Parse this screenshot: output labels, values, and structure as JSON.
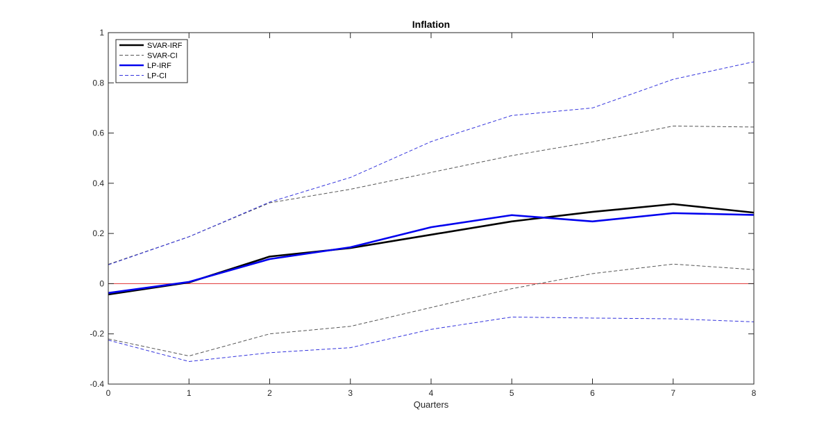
{
  "chart_data": {
    "type": "line",
    "title": "Inflation",
    "xlabel": "Quarters",
    "ylabel": "",
    "xlim": [
      0,
      8
    ],
    "ylim": [
      -0.4,
      1
    ],
    "x_ticks": [
      "0",
      "1",
      "2",
      "3",
      "4",
      "5",
      "6",
      "7",
      "8"
    ],
    "y_ticks": [
      "-0.4",
      "-0.2",
      "0",
      "0.2",
      "0.4",
      "0.6",
      "0.8",
      "1"
    ],
    "grid": false,
    "legend_position": "top-left",
    "x": [
      0,
      1,
      2,
      3,
      4,
      5,
      6,
      7,
      8
    ],
    "series": [
      {
        "name": "SVAR-IRF",
        "style": "solid",
        "color": "#000000",
        "values": [
          -0.043,
          0.005,
          0.108,
          0.142,
          0.195,
          0.248,
          0.286,
          0.317,
          0.283
        ]
      },
      {
        "name": "SVAR-CI",
        "style": "dashed",
        "color": "#555555",
        "values": [
          0.077,
          0.187,
          0.322,
          0.376,
          0.443,
          0.51,
          0.565,
          0.628,
          0.624
        ]
      },
      {
        "name": "SVAR-CI",
        "style": "dashed",
        "color": "#555555",
        "legend": false,
        "values": [
          -0.22,
          -0.288,
          -0.2,
          -0.17,
          -0.095,
          -0.02,
          0.04,
          0.078,
          0.056
        ]
      },
      {
        "name": "LP-IRF",
        "style": "solid",
        "color": "#0000ee",
        "values": [
          -0.037,
          0.007,
          0.098,
          0.145,
          0.225,
          0.273,
          0.248,
          0.281,
          0.274
        ]
      },
      {
        "name": "LP-CI",
        "style": "dashed",
        "color": "#3333dd",
        "values": [
          0.075,
          0.187,
          0.325,
          0.423,
          0.566,
          0.67,
          0.7,
          0.814,
          0.884
        ]
      },
      {
        "name": "LP-CI",
        "style": "dashed",
        "color": "#3333dd",
        "legend": false,
        "values": [
          -0.225,
          -0.31,
          -0.275,
          -0.255,
          -0.182,
          -0.133,
          -0.137,
          -0.14,
          -0.152
        ]
      }
    ],
    "reference_line": {
      "y": 0,
      "color": "#e03030"
    }
  }
}
